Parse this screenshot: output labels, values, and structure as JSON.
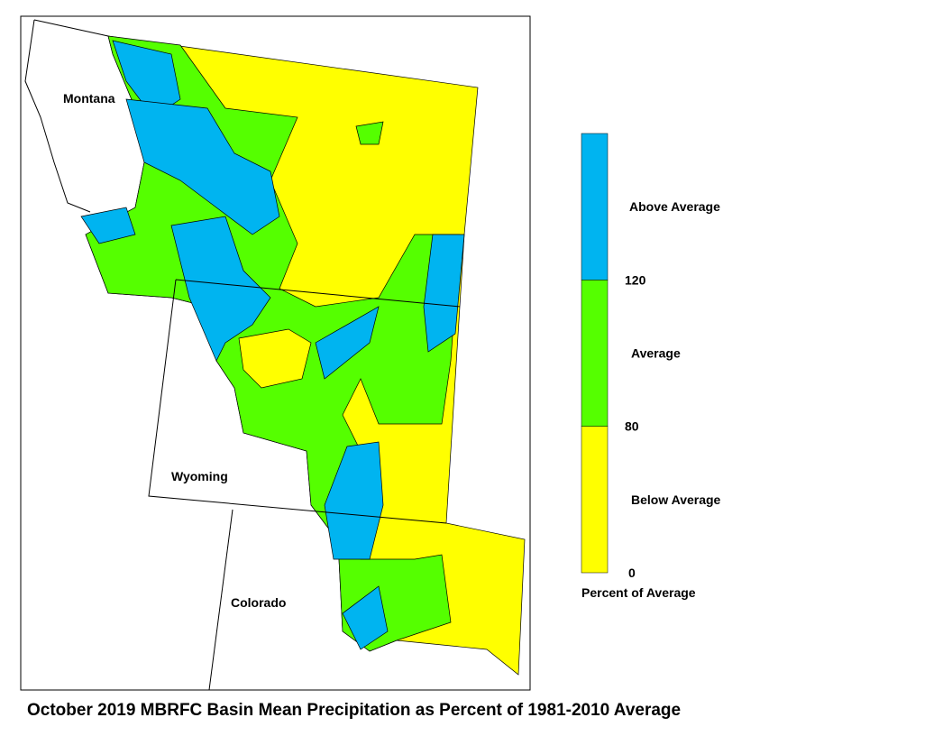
{
  "map": {
    "labels": [
      "Montana",
      "Wyoming",
      "Colorado"
    ]
  },
  "legend": {
    "classes": [
      {
        "label": "Below Average",
        "color": "#ffff00"
      },
      {
        "label": "Average",
        "color": "#55ff00"
      },
      {
        "label": "Above Average",
        "color": "#00b4f0"
      }
    ],
    "ticks": [
      0,
      80,
      120
    ],
    "title": "Percent of Average"
  },
  "caption": "October 2019 MBRFC Basin Mean Precipitation as Percent of 1981-2010 Average"
}
